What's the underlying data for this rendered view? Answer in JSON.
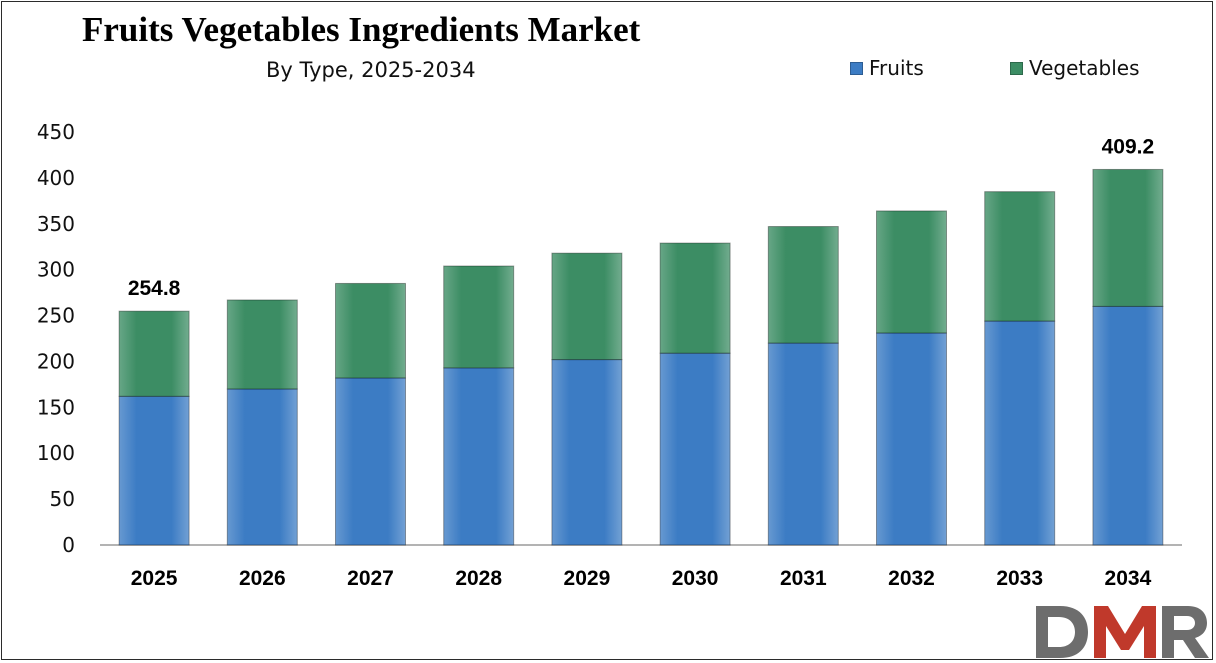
{
  "chart_data": {
    "type": "bar",
    "stacked": true,
    "title": "Fruits Vegetables Ingredients Market",
    "subtitle": "By Type, 2025-2034",
    "categories": [
      "2025",
      "2026",
      "2027",
      "2028",
      "2029",
      "2030",
      "2031",
      "2032",
      "2033",
      "2034"
    ],
    "series": [
      {
        "name": "Fruits",
        "color": "#3C7CC4",
        "values": [
          162,
          170,
          182,
          193,
          202,
          209,
          220,
          231,
          244,
          260
        ]
      },
      {
        "name": "Vegetables",
        "color": "#3C8D64",
        "values": [
          92.8,
          97,
          103,
          111,
          116,
          120,
          127,
          133,
          141,
          149.2
        ]
      }
    ],
    "data_labels": [
      {
        "category": "2025",
        "text": "254.8"
      },
      {
        "category": "2034",
        "text": "409.2"
      }
    ],
    "ylim": [
      0,
      450
    ],
    "yticks": [
      0,
      50,
      100,
      150,
      200,
      250,
      300,
      350,
      400,
      450
    ],
    "grid": false,
    "legend_position": "top-right"
  },
  "logo": {
    "text": "DMR",
    "colors": [
      "#6d6d6d",
      "#c0392b"
    ]
  }
}
